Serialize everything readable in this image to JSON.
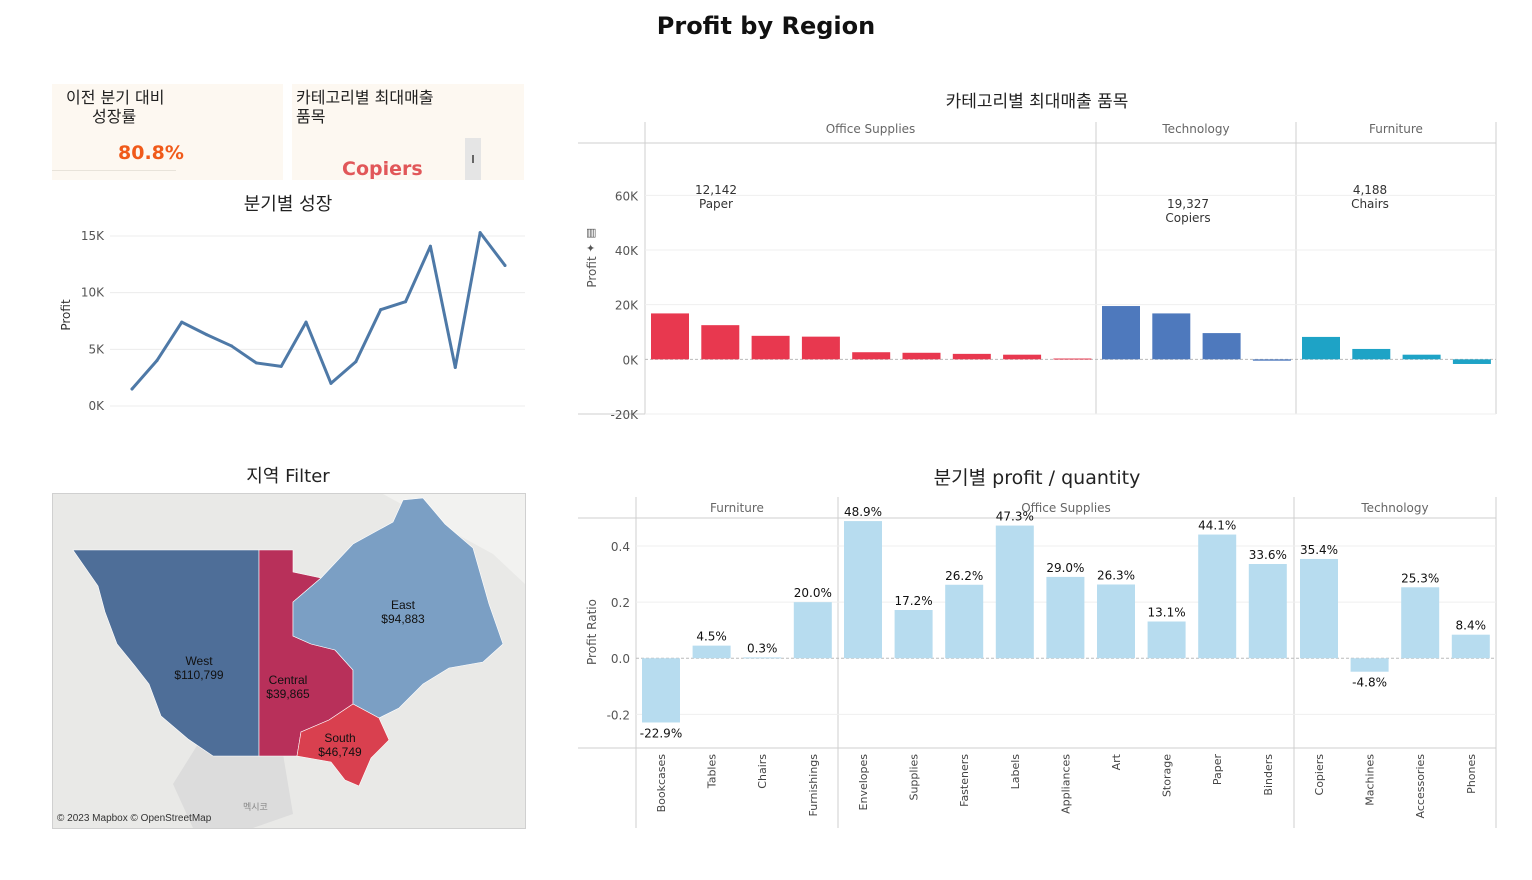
{
  "page": {
    "title": "Profit by Region"
  },
  "kpi_growth": {
    "label_line1": "이전 분기 대비",
    "label_line2": "성장률",
    "value": "80.8%",
    "value_color": "#f05a1a"
  },
  "kpi_top_item": {
    "label_line1": "카테고리별 최대매출",
    "label_line2": "품목",
    "value": "Copiers",
    "value_color": "#e15759"
  },
  "colors": {
    "office_supplies": "#e8384f",
    "technology": "#4e79bd",
    "furniture": "#1ea3c6",
    "ratio_bar": "#b7dcef",
    "line": "#4e79a7",
    "map_west": "#4e6e98",
    "map_central": "#b8305a",
    "map_east": "#7b9fc4",
    "map_south": "#d9404f"
  },
  "map": {
    "title": "지역 Filter",
    "credit": "© 2023 Mapbox © OpenStreetMap",
    "country_label": "멕시코",
    "regions": [
      {
        "name": "West",
        "value": "$110,799"
      },
      {
        "name": "Central",
        "value": "$39,865"
      },
      {
        "name": "East",
        "value": "$94,883"
      },
      {
        "name": "South",
        "value": "$46,749"
      }
    ]
  },
  "chart_data": [
    {
      "type": "line",
      "title": "분기별 성장",
      "xlabel": "",
      "ylabel": "Profit",
      "ylim": [
        0,
        15000
      ],
      "y_ticks": [
        0,
        5000,
        10000,
        15000
      ],
      "y_tick_labels": [
        "0K",
        "5K",
        "10K",
        "15K"
      ],
      "grid": true,
      "x": [
        1,
        2,
        3,
        4,
        5,
        6,
        7,
        8,
        9,
        10,
        11,
        12,
        13,
        14,
        15,
        16
      ],
      "series": [
        {
          "values": [
            1500,
            4000,
            7400,
            6300,
            5300,
            3800,
            3500,
            7400,
            2000,
            3900,
            8500,
            9200,
            14100,
            3400,
            15300,
            12400
          ]
        }
      ]
    },
    {
      "type": "bar",
      "title": "카테고리별 최대매출 품목",
      "ylabel": "Profit",
      "ylim": [
        -20000,
        70000
      ],
      "y_ticks": [
        -20000,
        0,
        20000,
        40000,
        60000
      ],
      "y_tick_labels": [
        "-20K",
        "0K",
        "20K",
        "40K",
        "60K"
      ],
      "grid": true,
      "panels": [
        {
          "name": "Office Supplies",
          "color": "#e8384f",
          "values": [
            16800,
            12500,
            8600,
            8300,
            2600,
            2400,
            2000,
            1700,
            300
          ],
          "annotation": {
            "value": "12,142",
            "item": "Paper"
          }
        },
        {
          "name": "Technology",
          "color": "#4e79bd",
          "values": [
            19500,
            16800,
            9600,
            -500
          ],
          "annotation": {
            "value": "19,327",
            "item": "Copiers"
          }
        },
        {
          "name": "Furniture",
          "color": "#1ea3c6",
          "values": [
            8200,
            3800,
            1700,
            -1700
          ],
          "annotation": {
            "value": "4,188",
            "item": "Chairs"
          }
        }
      ]
    },
    {
      "type": "bar",
      "title": "분기별 profit / quantity",
      "ylabel": "Profit Ratio",
      "ylim": [
        -0.32,
        0.5
      ],
      "y_ticks": [
        -0.2,
        0.0,
        0.2,
        0.4
      ],
      "y_tick_labels": [
        "-0.2",
        "0.0",
        "0.2",
        "0.4"
      ],
      "grid": true,
      "panels": [
        {
          "name": "Furniture",
          "categories": [
            "Bookcases",
            "Tables",
            "Chairs",
            "Furnishings"
          ],
          "values": [
            -0.229,
            0.045,
            0.003,
            0.2
          ],
          "labels": [
            "-22.9%",
            "4.5%",
            "0.3%",
            "20.0%"
          ]
        },
        {
          "name": "Office Supplies",
          "categories": [
            "Envelopes",
            "Supplies",
            "Fasteners",
            "Labels",
            "Appliances",
            "Art",
            "Storage",
            "Paper",
            "Binders"
          ],
          "values": [
            0.489,
            0.172,
            0.262,
            0.473,
            0.29,
            0.263,
            0.131,
            0.441,
            0.336
          ],
          "labels": [
            "48.9%",
            "17.2%",
            "26.2%",
            "47.3%",
            "29.0%",
            "26.3%",
            "13.1%",
            "44.1%",
            "33.6%"
          ]
        },
        {
          "name": "Technology",
          "categories": [
            "Copiers",
            "Machines",
            "Accessories",
            "Phones"
          ],
          "values": [
            0.354,
            -0.048,
            0.253,
            0.084
          ],
          "labels": [
            "35.4%",
            "-4.8%",
            "25.3%",
            "8.4%"
          ]
        }
      ]
    }
  ]
}
